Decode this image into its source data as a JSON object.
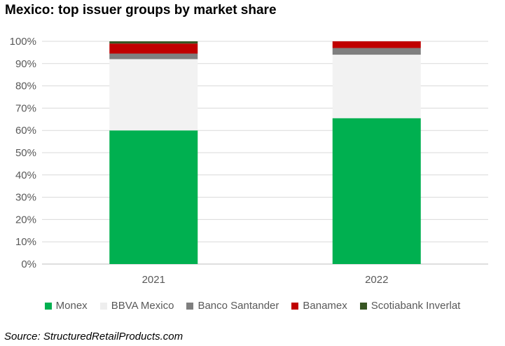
{
  "chart_data": {
    "type": "bar",
    "stacked": true,
    "title": "Mexico: top issuer groups by market share",
    "categories": [
      "2021",
      "2022"
    ],
    "ylim": [
      0,
      100
    ],
    "yticks": [
      "0%",
      "10%",
      "20%",
      "30%",
      "40%",
      "50%",
      "60%",
      "70%",
      "80%",
      "90%",
      "100%"
    ],
    "grid": true,
    "legend_position": "bottom",
    "series": [
      {
        "name": "Monex",
        "color": "#00b050",
        "values": [
          60,
          65.5
        ]
      },
      {
        "name": "BBVA Mexico",
        "color": "#f2f2f2",
        "values": [
          32,
          28.5
        ]
      },
      {
        "name": "Banco Santander",
        "color": "#7f7f7f",
        "values": [
          2.5,
          3
        ]
      },
      {
        "name": "Banamex",
        "color": "#c00000",
        "values": [
          4.5,
          3
        ]
      },
      {
        "name": "Scotiabank Inverlat",
        "color": "#375623",
        "values": [
          1,
          0
        ]
      }
    ],
    "source": "Source: StructuredRetailProducts.com"
  }
}
